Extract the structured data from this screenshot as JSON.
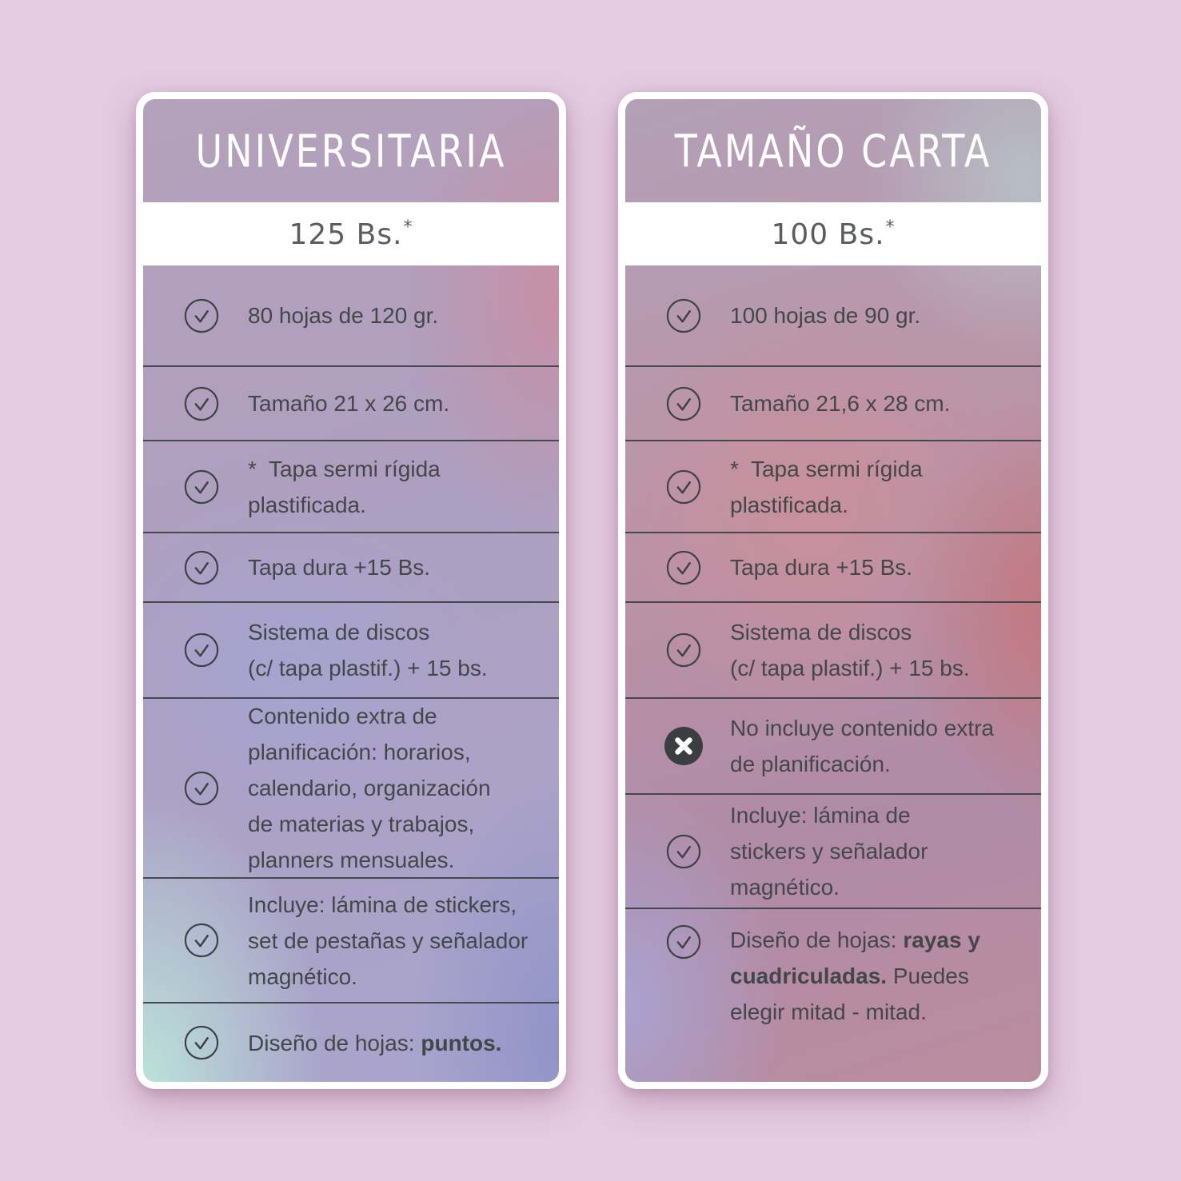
{
  "colors": {
    "page_background": "#e4cbdf",
    "card_border": "#ffffff",
    "title_text": "#ffffff",
    "price_text": "#595c60",
    "body_text": "#43474a",
    "divider": "#45484c",
    "check_icon": "#3e4245",
    "cross_icon_fill": "#3a3e41",
    "cross_icon_glyph": "#ffffff"
  },
  "cards": [
    {
      "title": "UNIVERSITARIA",
      "price": "125 Bs.",
      "price_note": "*",
      "features": [
        {
          "icon": "check-icon",
          "segments": [
            {
              "text": "80 hojas de 120 gr.",
              "bold": false
            }
          ]
        },
        {
          "icon": "check-icon",
          "segments": [
            {
              "text": "Tamaño 21 x 26 cm.",
              "bold": false
            }
          ]
        },
        {
          "icon": "check-icon",
          "segments": [
            {
              "text": "*  Tapa sermi rígida\nplastificada.",
              "bold": false
            }
          ]
        },
        {
          "icon": "check-icon",
          "segments": [
            {
              "text": "Tapa dura +15 Bs.",
              "bold": false
            }
          ]
        },
        {
          "icon": "check-icon",
          "segments": [
            {
              "text": "Sistema de discos\n(c/ tapa plastif.) + 15 bs.",
              "bold": false
            }
          ]
        },
        {
          "icon": "check-icon",
          "segments": [
            {
              "text": "Contenido extra de\nplanificación: horarios,\ncalendario, organización\nde materias y trabajos,\nplanners mensuales.",
              "bold": false
            }
          ]
        },
        {
          "icon": "check-icon",
          "segments": [
            {
              "text": "Incluye: lámina de stickers,\nset de pestañas y señalador\nmagnético.",
              "bold": false
            }
          ]
        },
        {
          "icon": "check-icon",
          "segments": [
            {
              "text": "Diseño de hojas: ",
              "bold": false
            },
            {
              "text": "puntos.",
              "bold": true
            }
          ]
        }
      ]
    },
    {
      "title": "TAMAÑO CARTA",
      "price": "100 Bs.",
      "price_note": "*",
      "features": [
        {
          "icon": "check-icon",
          "segments": [
            {
              "text": "100 hojas de 90 gr.",
              "bold": false
            }
          ]
        },
        {
          "icon": "check-icon",
          "segments": [
            {
              "text": "Tamaño 21,6 x 28 cm.",
              "bold": false
            }
          ]
        },
        {
          "icon": "check-icon",
          "segments": [
            {
              "text": "*  Tapa sermi rígida\nplastificada.",
              "bold": false
            }
          ]
        },
        {
          "icon": "check-icon",
          "segments": [
            {
              "text": "Tapa dura +15 Bs.",
              "bold": false
            }
          ]
        },
        {
          "icon": "check-icon",
          "segments": [
            {
              "text": "Sistema de discos\n(c/ tapa plastif.) + 15 bs.",
              "bold": false
            }
          ]
        },
        {
          "icon": "cross-icon",
          "segments": [
            {
              "text": "No incluye contenido extra\nde planificación.",
              "bold": false
            }
          ]
        },
        {
          "icon": "check-icon",
          "segments": [
            {
              "text": "Incluye: lámina de\nstickers y señalador\nmagnético.",
              "bold": false
            }
          ]
        },
        {
          "icon": "check-icon",
          "segments": [
            {
              "text": "Diseño de hojas: ",
              "bold": false
            },
            {
              "text": "rayas y\ncuadriculadas.",
              "bold": true
            },
            {
              "text": " Puedes\nelegir mitad - mitad.",
              "bold": false
            }
          ]
        }
      ]
    }
  ]
}
